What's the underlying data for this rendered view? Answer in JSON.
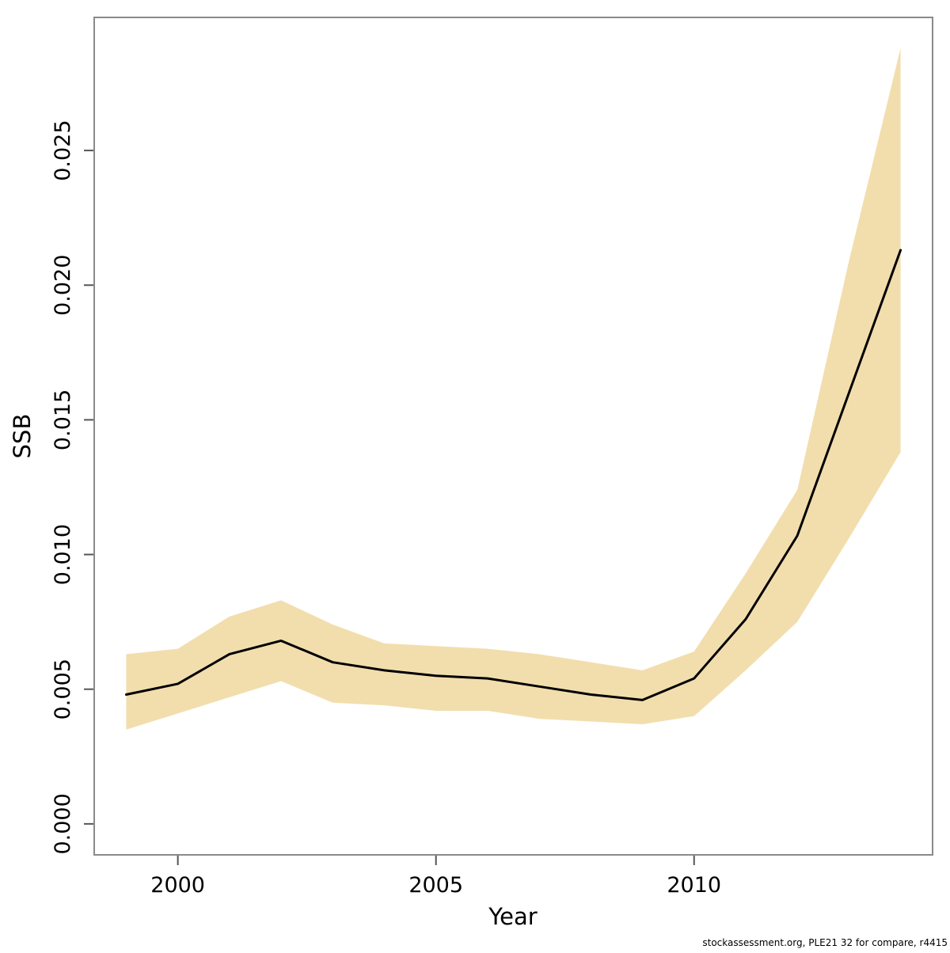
{
  "page": {
    "background": "#ffffff"
  },
  "footer": {
    "text": "stockassessment.org, PLE21 32 for compare, r4415"
  },
  "chart_data": {
    "type": "line",
    "title": "",
    "xlabel": "Year",
    "ylabel": "SSB",
    "x": [
      1999,
      2000,
      2001,
      2002,
      2003,
      2004,
      2005,
      2006,
      2007,
      2008,
      2009,
      2010,
      2011,
      2012,
      2013,
      2014
    ],
    "series": [
      {
        "name": "ssb-estimate",
        "color": "#000000",
        "values": [
          0.0048,
          0.0052,
          0.0063,
          0.0068,
          0.006,
          0.0057,
          0.0055,
          0.0054,
          0.0051,
          0.0048,
          0.0046,
          0.0054,
          0.0076,
          0.0107,
          0.016,
          0.0213
        ]
      }
    ],
    "band": {
      "name": "confidence-interval",
      "color": "#F2DEAD",
      "lower": [
        0.0035,
        0.0041,
        0.0047,
        0.0053,
        0.0045,
        0.0044,
        0.0042,
        0.0042,
        0.0039,
        0.0038,
        0.0037,
        0.004,
        0.0057,
        0.0075,
        0.0106,
        0.0138
      ],
      "upper": [
        0.0063,
        0.0065,
        0.0077,
        0.0083,
        0.0074,
        0.0067,
        0.0066,
        0.0065,
        0.0063,
        0.006,
        0.0057,
        0.0064,
        0.0093,
        0.0124,
        0.0209,
        0.0288
      ]
    },
    "x_ticks": [
      2000,
      2005,
      2010
    ],
    "x_tick_labels": [
      "2000",
      "2005",
      "2010"
    ],
    "y_ticks": [
      0,
      0.005,
      0.01,
      0.015,
      0.02,
      0.025
    ],
    "y_tick_labels": [
      "0.000",
      "0.005",
      "0.010",
      "0.015",
      "0.020",
      "0.025"
    ],
    "xlim": [
      1998.38,
      2014.62
    ],
    "ylim": [
      -0.00115,
      0.02994
    ],
    "grid": false,
    "legend_position": "none",
    "frame_color": "#8a8a8a",
    "tick_color": "#555555"
  }
}
